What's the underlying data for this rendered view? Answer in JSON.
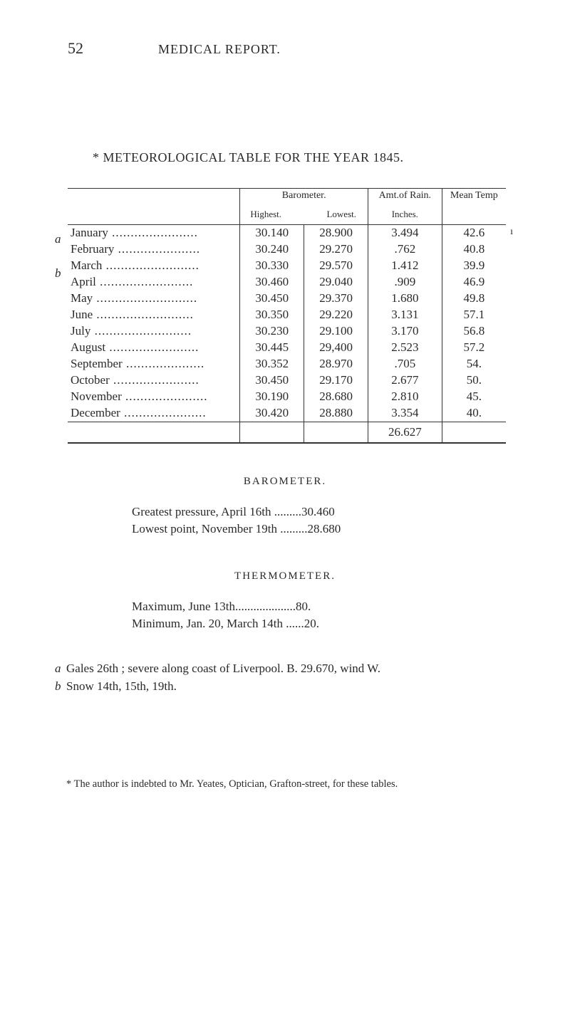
{
  "page": {
    "number": "52",
    "header_title": "MEDICAL REPORT."
  },
  "table": {
    "title": "* METEOROLOGICAL TABLE FOR THE YEAR 1845.",
    "headers": {
      "barometer": "Barometer.",
      "amt_rain": "Amt.of Rain.",
      "mean_temp": "Mean Temp",
      "highest": "Highest.",
      "lowest": "Lowest.",
      "inches": "Inches."
    },
    "prefixes": {
      "a": "a",
      "b": "b"
    },
    "rows": [
      {
        "month": "January",
        "high": "30.140",
        "low": "28.900",
        "rain": "3.494",
        "temp": "42.6"
      },
      {
        "month": "February",
        "high": "30.240",
        "low": "29.270",
        "rain": ".762",
        "temp": "40.8"
      },
      {
        "month": "March",
        "high": "30.330",
        "low": "29.570",
        "rain": "1.412",
        "temp": "39.9"
      },
      {
        "month": "April",
        "high": "30.460",
        "low": "29.040",
        "rain": ".909",
        "temp": "46.9"
      },
      {
        "month": "May",
        "high": "30.450",
        "low": "29.370",
        "rain": "1.680",
        "temp": "49.8"
      },
      {
        "month": "June",
        "high": "30.350",
        "low": "29.220",
        "rain": "3.131",
        "temp": "57.1"
      },
      {
        "month": "July",
        "high": "30.230",
        "low": "29.100",
        "rain": "3.170",
        "temp": "56.8"
      },
      {
        "month": "August",
        "high": "30.445",
        "low": "29,400",
        "rain": "2.523",
        "temp": "57.2"
      },
      {
        "month": "September",
        "high": "30.352",
        "low": "28.970",
        "rain": ".705",
        "temp": "54."
      },
      {
        "month": "October",
        "high": "30.450",
        "low": "29.170",
        "rain": "2.677",
        "temp": "50."
      },
      {
        "month": "November",
        "high": "30.190",
        "low": "28.680",
        "rain": "2.810",
        "temp": "45."
      },
      {
        "month": "December",
        "high": "30.420",
        "low": "28.880",
        "rain": "3.354",
        "temp": "40."
      }
    ],
    "total_rain": "26.627"
  },
  "barometer_section": {
    "heading": "BAROMETER.",
    "line1": "Greatest pressure, April 16th .........30.460",
    "line2": "Lowest point, November 19th .........28.680"
  },
  "thermometer_section": {
    "heading": "THERMOMETER.",
    "line1": "Maximum, June 13th....................80.",
    "line2": "Minimum, Jan. 20, March 14th ......20."
  },
  "notes": {
    "a": "Gales 26th ; severe along coast of Liverpool.  B. 29.670, wind W.",
    "b": "Snow 14th, 15th, 19th."
  },
  "footnote": "* The author is indebted to Mr. Yeates, Optician, Grafton-street, for these tables.",
  "colors": {
    "text": "#2a2a2a",
    "background": "#ffffff",
    "rule": "#333333"
  },
  "typography": {
    "body_fontsize": 17,
    "header_fontsize": 18,
    "subhead_fontsize": 13,
    "footnote_fontsize": 14.5,
    "font_family": "Georgia, Times New Roman, serif"
  }
}
